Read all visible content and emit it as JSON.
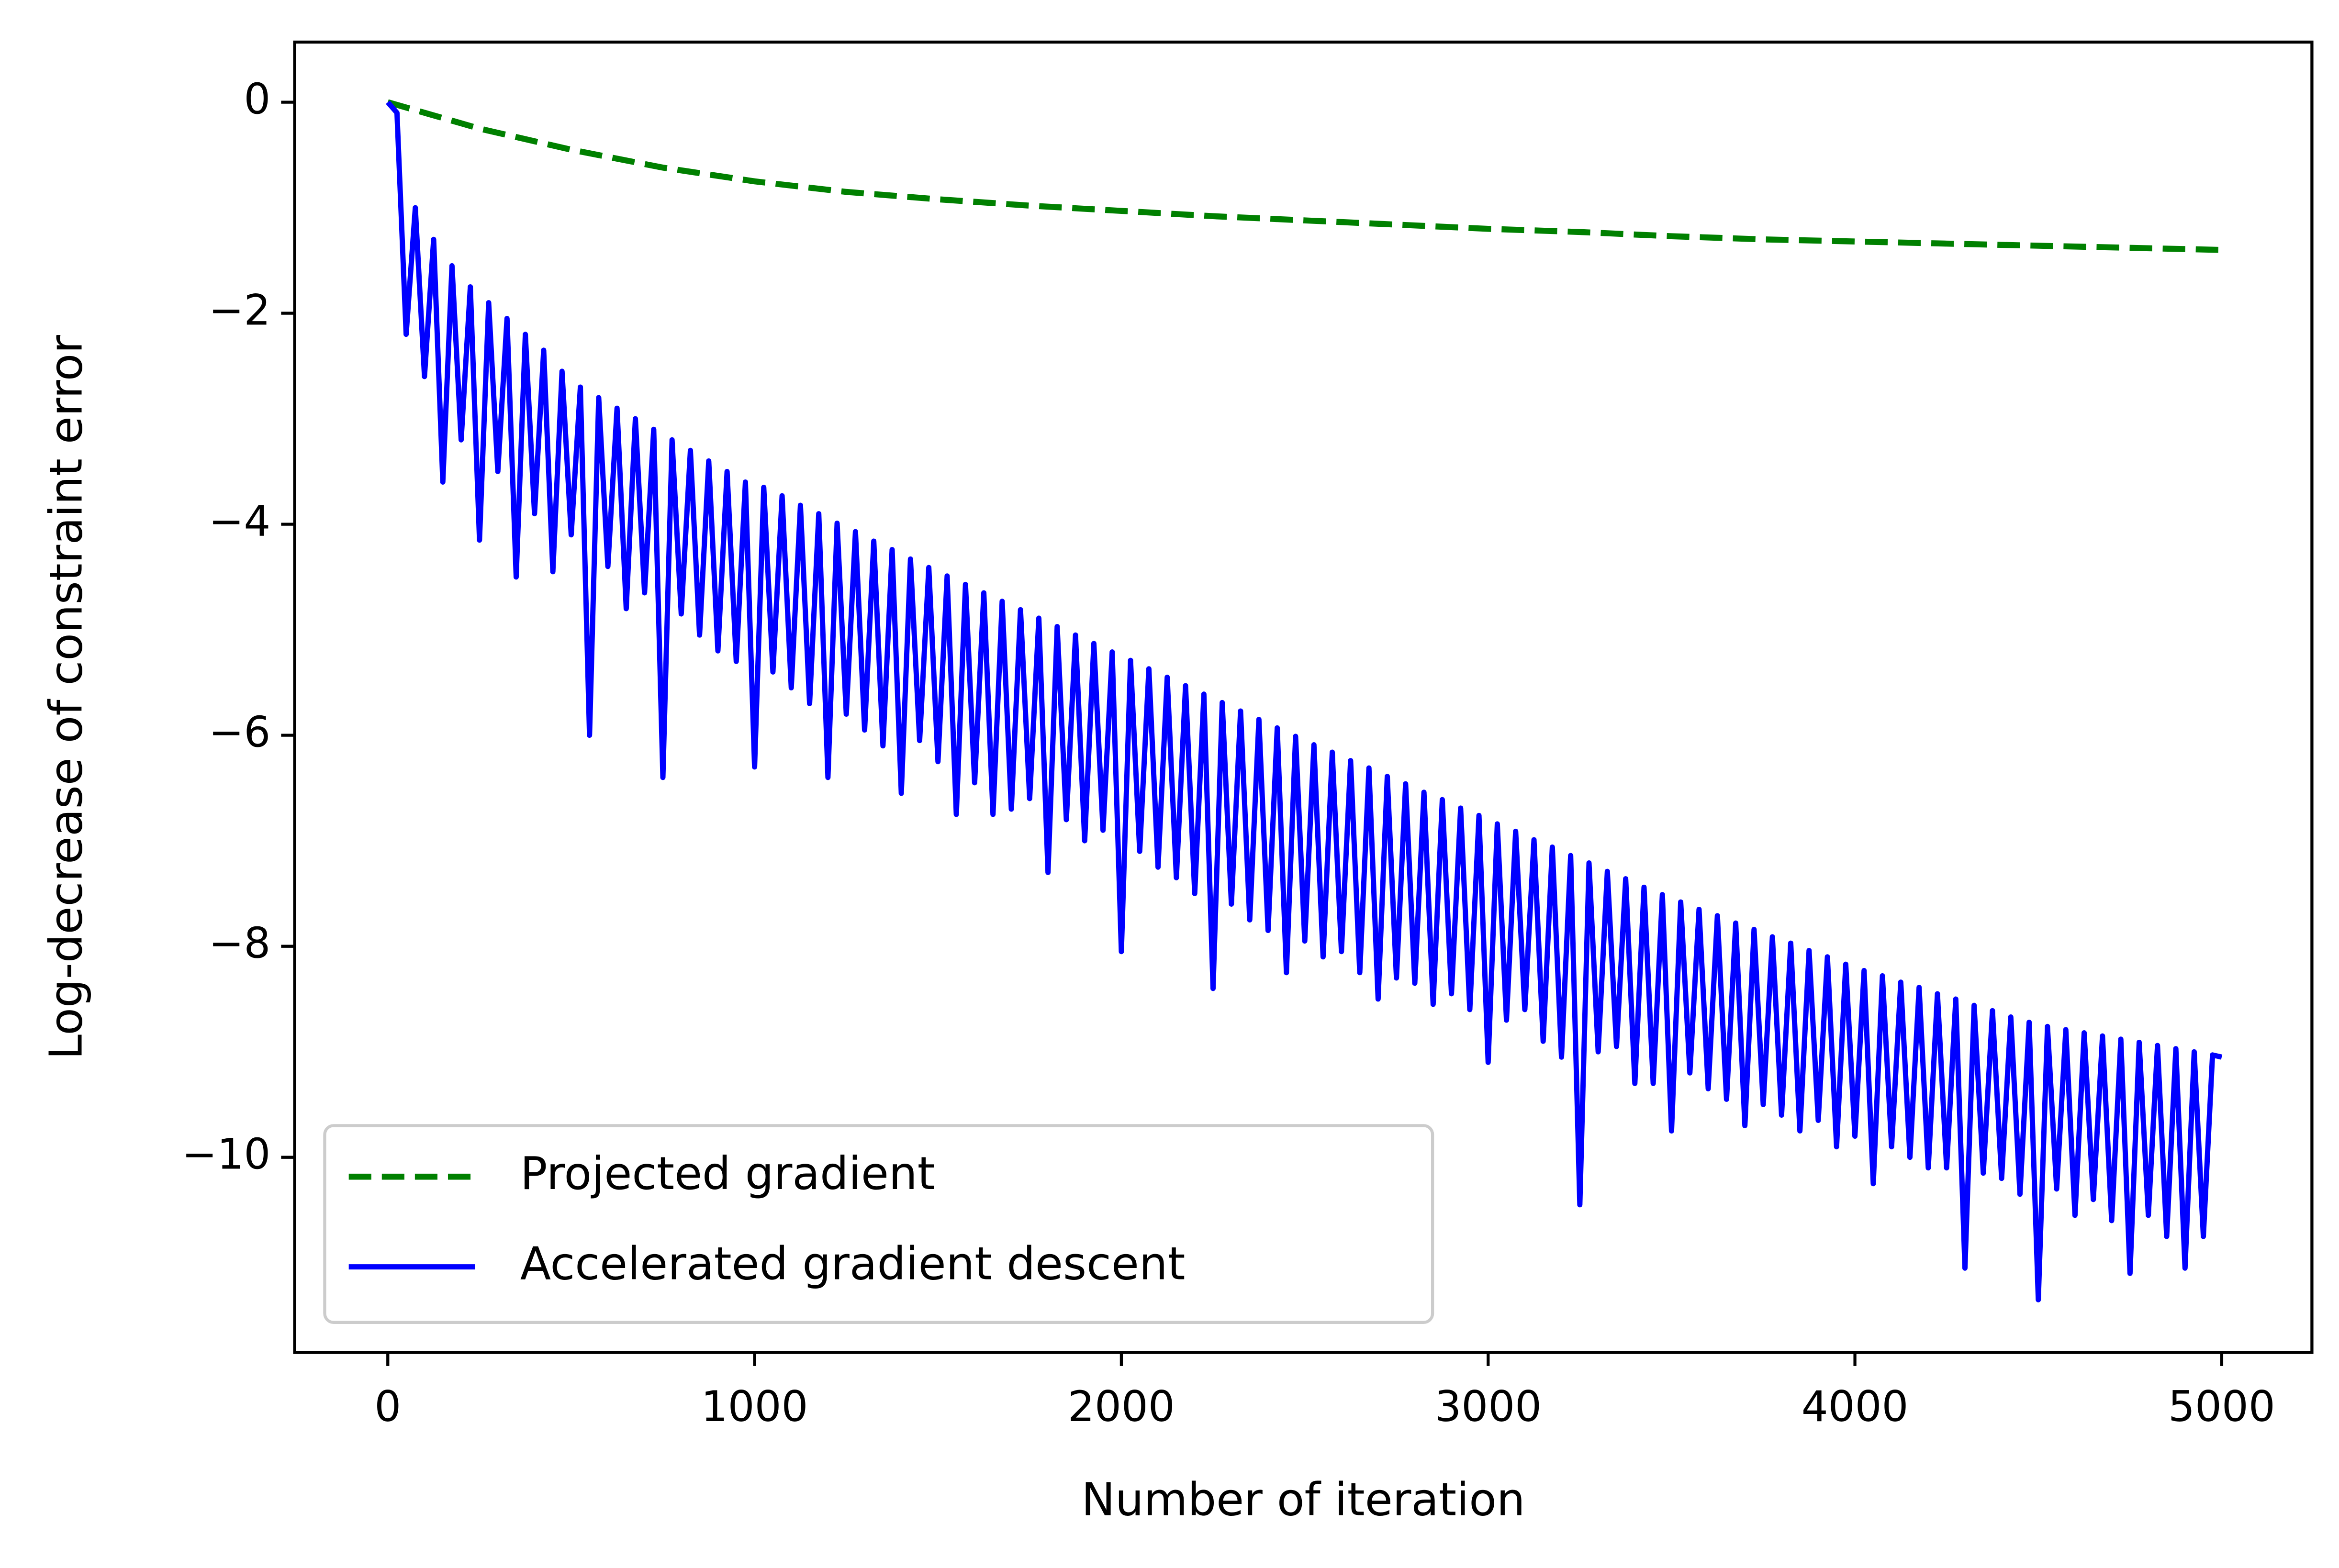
{
  "chart_data": {
    "type": "line",
    "xlabel": "Number of iteration",
    "ylabel": "Log-decrease of constraint error",
    "xlim": [
      -254,
      5246
    ],
    "ylim": [
      -11.85,
      0.57
    ],
    "xticks": [
      0,
      1000,
      2000,
      3000,
      4000,
      5000
    ],
    "yticks": [
      {
        "value": -10,
        "label": "−10"
      },
      {
        "value": -8,
        "label": "−8"
      },
      {
        "value": -6,
        "label": "−6"
      },
      {
        "value": -4,
        "label": "−4"
      },
      {
        "value": -2,
        "label": "−2"
      },
      0
    ],
    "grid": false,
    "legend": "lower left",
    "series": [
      {
        "name": "Projected gradient",
        "color": "#008000",
        "dash": true,
        "x": [
          0,
          250,
          500,
          750,
          1000,
          1250,
          1500,
          1750,
          2000,
          2250,
          2500,
          2750,
          3000,
          3250,
          3500,
          3750,
          4000,
          4250,
          4500,
          4750,
          5000
        ],
        "values": [
          0,
          -0.25,
          -0.45,
          -0.62,
          -0.75,
          -0.85,
          -0.92,
          -0.98,
          -1.03,
          -1.08,
          -1.12,
          -1.16,
          -1.2,
          -1.23,
          -1.27,
          -1.3,
          -1.32,
          -1.34,
          -1.36,
          -1.38,
          -1.4
        ]
      },
      {
        "name": "Accelerated gradient descent",
        "color": "#0000ff",
        "dash": false,
        "x": [
          0,
          25,
          50,
          75,
          100,
          125,
          150,
          175,
          200,
          225,
          250,
          275,
          300,
          325,
          350,
          375,
          400,
          425,
          450,
          475,
          500,
          525,
          550,
          575,
          600,
          625,
          650,
          675,
          700,
          725,
          750,
          775,
          800,
          825,
          850,
          875,
          900,
          925,
          950,
          975,
          1000,
          1025,
          1050,
          1075,
          1100,
          1125,
          1150,
          1175,
          1200,
          1225,
          1250,
          1275,
          1300,
          1325,
          1350,
          1375,
          1400,
          1425,
          1450,
          1475,
          1500,
          1525,
          1550,
          1575,
          1600,
          1625,
          1650,
          1675,
          1700,
          1725,
          1750,
          1775,
          1800,
          1825,
          1850,
          1875,
          1900,
          1925,
          1950,
          1975,
          2000,
          2025,
          2050,
          2075,
          2100,
          2125,
          2150,
          2175,
          2200,
          2225,
          2250,
          2275,
          2300,
          2325,
          2350,
          2375,
          2400,
          2425,
          2450,
          2475,
          2500,
          2525,
          2550,
          2575,
          2600,
          2625,
          2650,
          2675,
          2700,
          2725,
          2750,
          2775,
          2800,
          2825,
          2850,
          2875,
          2900,
          2925,
          2950,
          2975,
          3000,
          3025,
          3050,
          3075,
          3100,
          3125,
          3150,
          3175,
          3200,
          3225,
          3250,
          3275,
          3300,
          3325,
          3350,
          3375,
          3400,
          3425,
          3450,
          3475,
          3500,
          3525,
          3550,
          3575,
          3600,
          3625,
          3650,
          3675,
          3700,
          3725,
          3750,
          3775,
          3800,
          3825,
          3850,
          3875,
          3900,
          3925,
          3950,
          3975,
          4000,
          4025,
          4050,
          4075,
          4100,
          4125,
          4150,
          4175,
          4200,
          4225,
          4250,
          4275,
          4300,
          4325,
          4350,
          4375,
          4400,
          4425,
          4450,
          4475,
          4500,
          4525,
          4550,
          4575,
          4600,
          4625,
          4650,
          4675,
          4700,
          4725,
          4750,
          4775,
          4800,
          4825,
          4850,
          4875,
          4900,
          4925,
          4950,
          4975,
          5000
        ],
        "values": [
          0,
          -0.1,
          -2.2,
          -1.0,
          -2.6,
          -1.3,
          -3.6,
          -1.55,
          -3.2,
          -1.75,
          -4.15,
          -1.9,
          -3.5,
          -2.05,
          -4.5,
          -2.2,
          -3.9,
          -2.35,
          -4.45,
          -2.55,
          -4.1,
          -2.7,
          -6.0,
          -2.8,
          -4.4,
          -2.9,
          -4.8,
          -3.0,
          -4.65,
          -3.1,
          -6.4,
          -3.2,
          -4.85,
          -3.3,
          -5.05,
          -3.4,
          -5.2,
          -3.5,
          -5.3,
          -3.6,
          -6.3,
          -3.65,
          -5.4,
          -3.73,
          -5.55,
          -3.82,
          -5.7,
          -3.9,
          -6.4,
          -3.99,
          -5.8,
          -4.07,
          -5.95,
          -4.16,
          -6.1,
          -4.24,
          -6.55,
          -4.33,
          -6.05,
          -4.41,
          -6.25,
          -4.49,
          -6.75,
          -4.57,
          -6.45,
          -4.65,
          -6.75,
          -4.73,
          -6.7,
          -4.81,
          -6.6,
          -4.89,
          -7.3,
          -4.97,
          -6.8,
          -5.05,
          -7.0,
          -5.13,
          -6.9,
          -5.21,
          -8.05,
          -5.29,
          -7.1,
          -5.37,
          -7.25,
          -5.45,
          -7.35,
          -5.53,
          -7.5,
          -5.61,
          -8.4,
          -5.69,
          -7.6,
          -5.77,
          -7.75,
          -5.85,
          -7.85,
          -5.93,
          -8.25,
          -6.01,
          -7.95,
          -6.09,
          -8.1,
          -6.16,
          -8.05,
          -6.24,
          -8.25,
          -6.31,
          -8.5,
          -6.39,
          -8.3,
          -6.46,
          -8.35,
          -6.54,
          -8.55,
          -6.61,
          -8.45,
          -6.69,
          -8.6,
          -6.76,
          -9.1,
          -6.84,
          -8.7,
          -6.91,
          -8.6,
          -6.99,
          -8.9,
          -7.06,
          -9.05,
          -7.14,
          -10.45,
          -7.21,
          -9.0,
          -7.29,
          -8.95,
          -7.36,
          -9.3,
          -7.44,
          -9.3,
          -7.51,
          -9.75,
          -7.58,
          -9.2,
          -7.65,
          -9.35,
          -7.71,
          -9.45,
          -7.78,
          -9.7,
          -7.84,
          -9.5,
          -7.91,
          -9.6,
          -7.97,
          -9.75,
          -8.04,
          -9.65,
          -8.1,
          -9.9,
          -8.17,
          -9.8,
          -8.23,
          -10.25,
          -8.28,
          -9.9,
          -8.34,
          -10.0,
          -8.39,
          -10.1,
          -8.45,
          -10.1,
          -8.5,
          -11.05,
          -8.56,
          -10.15,
          -8.61,
          -10.2,
          -8.67,
          -10.35,
          -8.72,
          -11.35,
          -8.76,
          -10.3,
          -8.79,
          -10.55,
          -8.82,
          -10.4,
          -8.85,
          -10.6,
          -8.88,
          -11.1,
          -8.91,
          -10.55,
          -8.94,
          -10.75,
          -8.97,
          -11.05,
          -9.0,
          -10.75,
          -9.03,
          -9.05
        ]
      }
    ]
  }
}
